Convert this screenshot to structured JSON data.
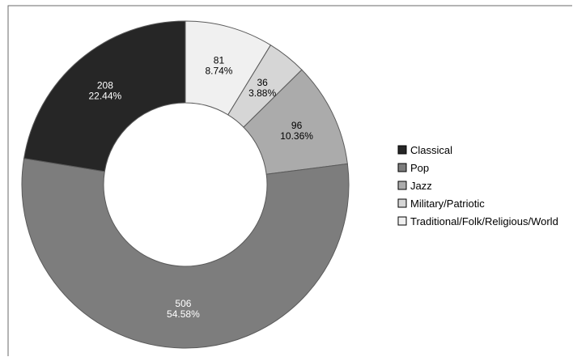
{
  "chart_data": {
    "type": "pie",
    "variant": "donut",
    "categories": [
      "Classical",
      "Pop",
      "Jazz",
      "Military/Patriotic",
      "Traditional/Folk/Religious/World"
    ],
    "values": [
      208,
      506,
      96,
      36,
      81
    ],
    "percent_labels": [
      "22.44%",
      "54.58%",
      "10.36%",
      "3.88%",
      "8.74%"
    ],
    "legend_placement": "right",
    "colors": {
      "Classical": "#262626",
      "Pop": "#7d7d7d",
      "Jazz": "#ababab",
      "Military/Patriotic": "#d6d6d6",
      "Traditional/Folk/Religious/World": "#f0f0f0"
    },
    "label_colors": {
      "Classical": "#ffffff",
      "Pop": "#ffffff",
      "Jazz": "#000000",
      "Military/Patriotic": "#000000",
      "Traditional/Folk/Religious/World": "#000000"
    },
    "slice_order_clockwise_from_top": [
      "Traditional/Folk/Religious/World",
      "Military/Patriotic",
      "Jazz",
      "Pop",
      "Classical"
    ]
  }
}
